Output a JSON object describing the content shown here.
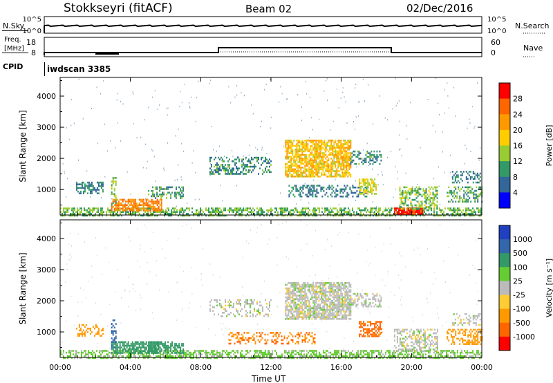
{
  "header": {
    "station": "Stokkseyri (fitACF)",
    "beam": "Beam 02",
    "date": "02/Dec/2016"
  },
  "strips": {
    "nsky": {
      "label": "N.Sky",
      "right_label": "N.Search",
      "left_ticks": [
        "10^5",
        "10^0"
      ],
      "right_ticks": [
        "10^5",
        "10^0"
      ]
    },
    "freq": {
      "label_line1": "Freq.",
      "label_line2": "[MHz]",
      "right_label": "Nave",
      "left_ticks": [
        "18",
        "8"
      ],
      "right_ticks": [
        "60",
        "0"
      ]
    },
    "cpid": {
      "label": "CPID",
      "value": "iwdscan 3385"
    }
  },
  "chart_data": [
    {
      "type": "heatmap",
      "panel": "power",
      "title": "",
      "xlabel": "",
      "ylabel": "Slant Range [km]",
      "x_ticks": [
        "00:00",
        "04:00",
        "08:00",
        "12:00",
        "16:00",
        "20:00",
        "00:00"
      ],
      "xlim_hours": [
        0,
        24
      ],
      "y_ticks": [
        1000,
        2000,
        3000,
        4000
      ],
      "ylim": [
        180,
        4600
      ],
      "colorbar": {
        "label": "Power [dB]",
        "ticks": [
          "28",
          "24",
          "20",
          "16",
          "12",
          "8",
          "4"
        ],
        "colors": [
          "#ff0000",
          "#ff6600",
          "#ff9900",
          "#ffcc00",
          "#99cc33",
          "#339966",
          "#336699",
          "#0000ff"
        ]
      },
      "echo_regions": [
        {
          "t0": 0.0,
          "t1": 24.0,
          "r0": 180,
          "r1": 420,
          "level": 10,
          "density": 0.55
        },
        {
          "t0": 2.9,
          "t1": 5.8,
          "r0": 330,
          "r1": 700,
          "level": 22,
          "density": 0.7
        },
        {
          "t0": 5.0,
          "t1": 7.0,
          "r0": 700,
          "r1": 1100,
          "level": 8,
          "density": 0.45
        },
        {
          "t0": 0.9,
          "t1": 2.4,
          "r0": 900,
          "r1": 1250,
          "level": 6,
          "density": 0.45
        },
        {
          "t0": 2.9,
          "t1": 3.2,
          "r0": 500,
          "r1": 1400,
          "level": 12,
          "density": 0.6
        },
        {
          "t0": 8.5,
          "t1": 12.0,
          "r0": 1500,
          "r1": 2050,
          "level": 7,
          "density": 0.4
        },
        {
          "t0": 12.8,
          "t1": 16.5,
          "r0": 1400,
          "r1": 2600,
          "level": 17,
          "density": 0.75
        },
        {
          "t0": 13.0,
          "t1": 17.5,
          "r0": 800,
          "r1": 1150,
          "level": 6,
          "density": 0.35
        },
        {
          "t0": 16.5,
          "t1": 18.3,
          "r0": 1800,
          "r1": 2250,
          "level": 7,
          "density": 0.4
        },
        {
          "t0": 17.0,
          "t1": 18.0,
          "r0": 850,
          "r1": 1350,
          "level": 14,
          "density": 0.6
        },
        {
          "t0": 19.0,
          "t1": 20.6,
          "r0": 200,
          "r1": 420,
          "level": 27,
          "density": 0.9
        },
        {
          "t0": 19.3,
          "t1": 21.5,
          "r0": 400,
          "r1": 1100,
          "level": 11,
          "density": 0.5
        },
        {
          "t0": 22.0,
          "t1": 24.0,
          "r0": 600,
          "r1": 1100,
          "level": 9,
          "density": 0.45
        },
        {
          "t0": 22.3,
          "t1": 23.9,
          "r0": 1250,
          "r1": 1600,
          "level": 6,
          "density": 0.35
        }
      ]
    },
    {
      "type": "heatmap",
      "panel": "velocity",
      "title": "",
      "xlabel": "Time UT",
      "ylabel": "Slant Range [km]",
      "x_ticks": [
        "00:00",
        "04:00",
        "08:00",
        "12:00",
        "16:00",
        "20:00",
        "00:00"
      ],
      "xlim_hours": [
        0,
        24
      ],
      "y_ticks": [
        1000,
        2000,
        3000,
        4000
      ],
      "ylim": [
        180,
        4600
      ],
      "colorbar": {
        "label": "Velocity [m s⁻¹]",
        "ticks": [
          "1000",
          "500",
          "100",
          "25",
          "-25",
          "-100",
          "-500",
          "-1000"
        ],
        "colors": [
          "#2040c0",
          "#3366aa",
          "#339966",
          "#66cc33",
          "#bbbbbb",
          "#ffcc33",
          "#ff9900",
          "#ff6600",
          "#ff0000"
        ]
      },
      "echo_regions": [
        {
          "t0": 0.0,
          "t1": 24.0,
          "r0": 180,
          "r1": 420,
          "level": 25,
          "density": 0.55
        },
        {
          "t0": 2.9,
          "t1": 5.8,
          "r0": 330,
          "r1": 700,
          "level": 150,
          "density": 0.7
        },
        {
          "t0": 5.0,
          "t1": 7.0,
          "r0": 330,
          "r1": 700,
          "level": 150,
          "density": 0.55
        },
        {
          "t0": 0.9,
          "t1": 2.4,
          "r0": 900,
          "r1": 1250,
          "level": -200,
          "density": 0.35
        },
        {
          "t0": 2.9,
          "t1": 3.2,
          "r0": 500,
          "r1": 1400,
          "level": 600,
          "density": 0.5
        },
        {
          "t0": 8.5,
          "t1": 12.0,
          "r0": 1500,
          "r1": 2050,
          "level": 0,
          "density": 0.3
        },
        {
          "t0": 12.8,
          "t1": 16.5,
          "r0": 1400,
          "r1": 2600,
          "level": 0,
          "density": 0.75
        },
        {
          "t0": 9.5,
          "t1": 14.5,
          "r0": 600,
          "r1": 1000,
          "level": -300,
          "density": 0.35
        },
        {
          "t0": 16.5,
          "t1": 18.3,
          "r0": 1800,
          "r1": 2250,
          "level": 0,
          "density": 0.35
        },
        {
          "t0": 17.0,
          "t1": 18.3,
          "r0": 850,
          "r1": 1350,
          "level": -400,
          "density": 0.6
        },
        {
          "t0": 19.0,
          "t1": 21.5,
          "r0": 400,
          "r1": 1100,
          "level": 0,
          "density": 0.45
        },
        {
          "t0": 22.0,
          "t1": 24.0,
          "r0": 600,
          "r1": 1100,
          "level": -150,
          "density": 0.4
        },
        {
          "t0": 22.3,
          "t1": 23.9,
          "r0": 1250,
          "r1": 1600,
          "level": 0,
          "density": 0.3
        }
      ]
    }
  ]
}
